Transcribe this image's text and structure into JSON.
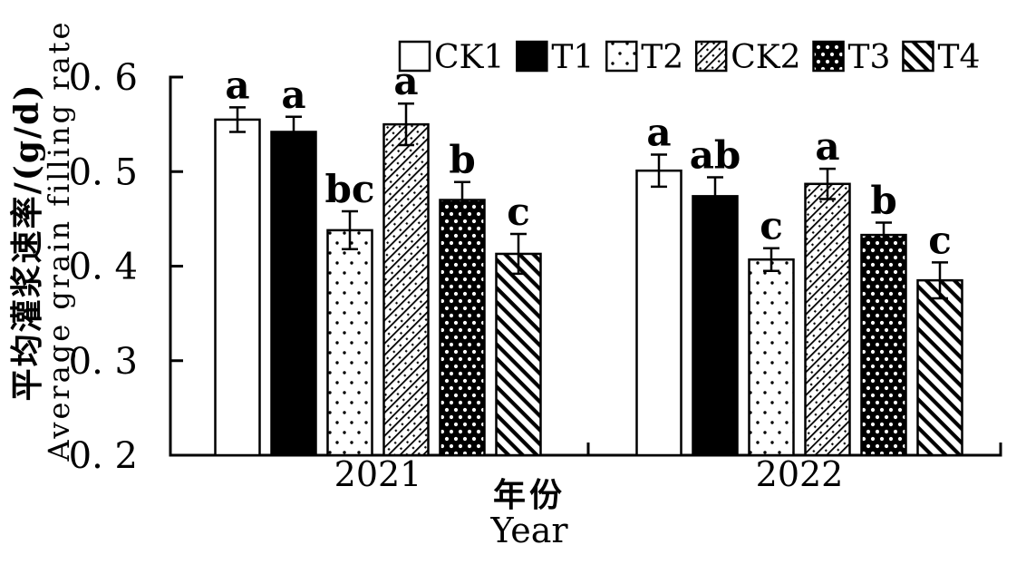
{
  "chart_data": {
    "type": "bar",
    "title": "",
    "ylabel_zh": "平均灌浆速率/(g/d)",
    "ylabel_en": "Average grain filling rate",
    "xlabel_zh": "年份",
    "xlabel_en": "Year",
    "ylim": [
      0.2,
      0.6
    ],
    "yticks": [
      0.2,
      0.3,
      0.4,
      0.5,
      0.6
    ],
    "ytick_labels": [
      "0. 2",
      "0. 3",
      "0. 4",
      "0. 5",
      "0. 6"
    ],
    "categories": [
      "2021",
      "2022"
    ],
    "grid": false,
    "legend_position": "top",
    "colors": {
      "foreground": "#000000",
      "background": "#ffffff"
    },
    "series": [
      {
        "name": "CK1",
        "pattern": "plain-white",
        "values": [
          0.555,
          0.501
        ],
        "errors": [
          0.013,
          0.017
        ],
        "sig_letters": [
          "a",
          "a"
        ]
      },
      {
        "name": "T1",
        "pattern": "solid-black",
        "values": [
          0.542,
          0.474
        ],
        "errors": [
          0.016,
          0.02
        ],
        "sig_letters": [
          "a",
          "ab"
        ]
      },
      {
        "name": "T2",
        "pattern": "sparse-dots",
        "values": [
          0.438,
          0.407
        ],
        "errors": [
          0.02,
          0.012
        ],
        "sig_letters": [
          "bc",
          "c"
        ]
      },
      {
        "name": "CK2",
        "pattern": "thin-diagonal-dotted",
        "values": [
          0.55,
          0.487
        ],
        "errors": [
          0.022,
          0.016
        ],
        "sig_letters": [
          "a",
          "a"
        ]
      },
      {
        "name": "T3",
        "pattern": "black-white-dots",
        "values": [
          0.47,
          0.433
        ],
        "errors": [
          0.019,
          0.013
        ],
        "sig_letters": [
          "b",
          "b"
        ]
      },
      {
        "name": "T4",
        "pattern": "thick-backslash",
        "values": [
          0.413,
          0.385
        ],
        "errors": [
          0.021,
          0.019
        ],
        "sig_letters": [
          "c",
          "c"
        ]
      }
    ]
  }
}
